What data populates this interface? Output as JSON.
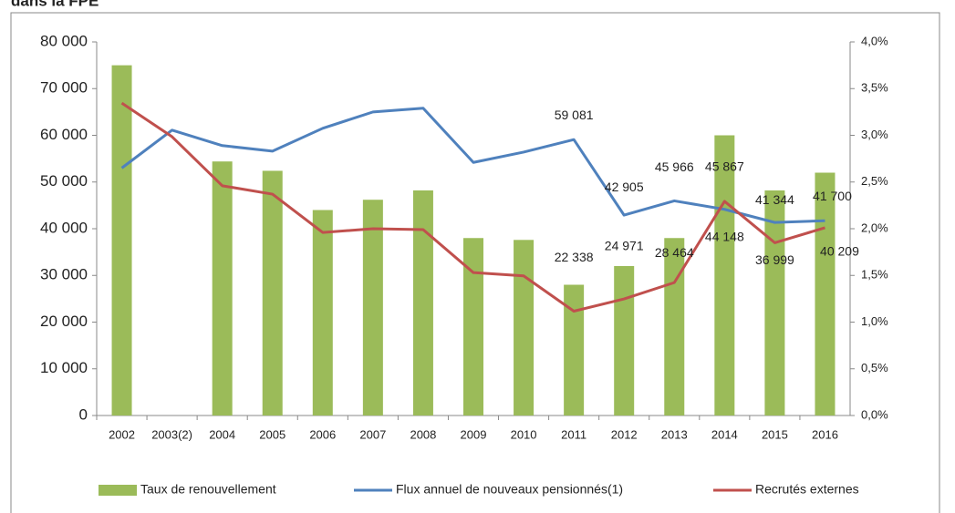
{
  "chart_data": {
    "type": "bar_line",
    "title": "dans la FPE",
    "categories": [
      "2002",
      "2003(2)",
      "2004",
      "2005",
      "2006",
      "2007",
      "2008",
      "2009",
      "2010",
      "2011",
      "2012",
      "2013",
      "2014",
      "2015",
      "2016"
    ],
    "series": [
      {
        "name": "Taux de renouvellement",
        "color": "#9bbb59",
        "type": "bar",
        "axis": "y2",
        "values": [
          3.75,
          null,
          2.72,
          2.62,
          2.2,
          2.31,
          2.41,
          1.9,
          1.88,
          1.4,
          1.6,
          1.9,
          3.0,
          2.41,
          2.6
        ]
      },
      {
        "name": "Flux annuel de nouveaux pensionnés(1)",
        "color": "#4f81bd",
        "type": "line",
        "values": [
          53000,
          61100,
          57800,
          56600,
          61500,
          65000,
          65800,
          54200,
          56400,
          59081,
          42905,
          45966,
          44148,
          41344,
          41700
        ],
        "value_labels": [
          null,
          null,
          null,
          null,
          null,
          null,
          null,
          null,
          null,
          "59 081",
          "42 905",
          "45 966",
          "44 148",
          "41 344",
          "41 700"
        ]
      },
      {
        "name": "Recrutés externes",
        "color": "#c0504d",
        "type": "line",
        "values": [
          66900,
          59700,
          49200,
          47400,
          39200,
          40000,
          39800,
          30600,
          29900,
          22338,
          24971,
          28464,
          45867,
          36999,
          40209
        ],
        "value_labels": [
          null,
          null,
          null,
          null,
          null,
          null,
          null,
          null,
          null,
          "22 338",
          "24 971",
          "28 464",
          "45 867",
          "36 999",
          "40 209"
        ]
      }
    ],
    "ylim": [
      0,
      80000
    ],
    "yticks": [
      0,
      {
        "value": 10000,
        "label": "10 000"
      },
      {
        "value": 20000,
        "label": "20 000"
      },
      {
        "value": 30000,
        "label": "30 000"
      },
      {
        "value": 40000,
        "label": "40 000"
      },
      {
        "value": 50000,
        "label": "50 000"
      },
      {
        "value": 60000,
        "label": "60 000"
      },
      {
        "value": 70000,
        "label": "70 000"
      },
      {
        "value": 80000,
        "label": "80 000"
      }
    ],
    "y2lim": [
      0,
      4
    ],
    "y2ticks": [
      {
        "value": 0,
        "label": "0,0%"
      },
      {
        "value": 0.5,
        "label": "0,5%"
      },
      {
        "value": 1,
        "label": "1,0%"
      },
      {
        "value": 1.5,
        "label": "1,5%"
      },
      {
        "value": 2,
        "label": "2,0%"
      },
      {
        "value": 2.5,
        "label": "2,5%"
      },
      {
        "value": 3,
        "label": "3,0%"
      },
      {
        "value": 3.5,
        "label": "3,5%"
      },
      {
        "value": 4,
        "label": "4,0%"
      }
    ],
    "legend": "bottom"
  }
}
